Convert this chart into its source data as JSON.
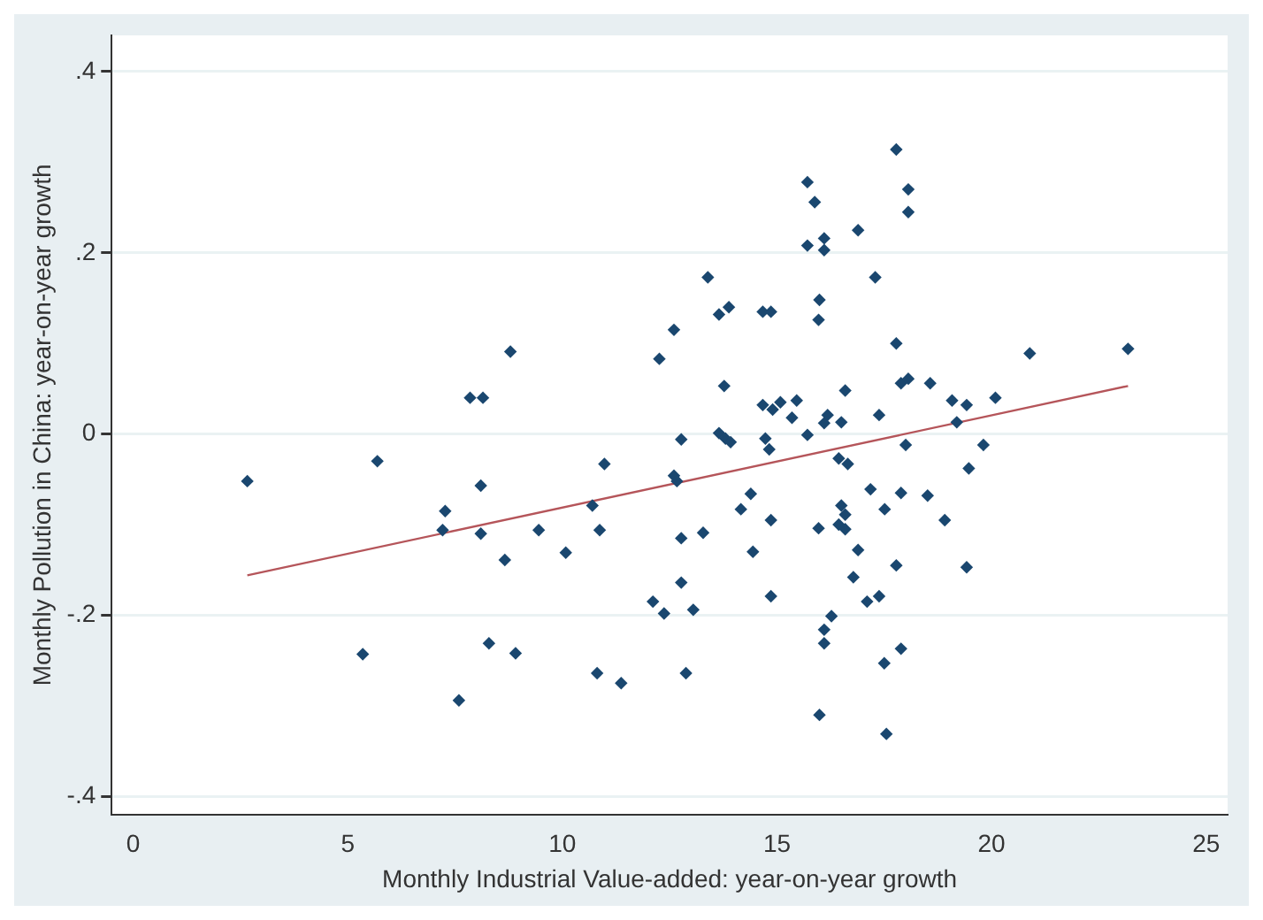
{
  "chart_data": {
    "type": "scatter",
    "xlabel": "Monthly Industrial Value-added: year-on-year growth",
    "ylabel": "Monthly Pollution in China: year-on-year growth",
    "xlim": [
      -0.5,
      25.5
    ],
    "ylim": [
      -0.42,
      0.44
    ],
    "xticks": [
      0,
      5,
      10,
      15,
      20,
      25
    ],
    "yticks": [
      {
        "value": -0.4,
        "label": "-.4"
      },
      {
        "value": -0.2,
        "label": "-.2"
      },
      0,
      {
        "value": 0.2,
        "label": ".2"
      },
      {
        "value": 0.4,
        "label": ".4"
      }
    ],
    "grid": "y",
    "legend": false,
    "series": [
      {
        "type": "scatter",
        "marker": "diamond",
        "color": "#1a476f",
        "x": [
          2.66,
          5.69,
          5.35,
          7.27,
          7.21,
          7.59,
          7.85,
          8.15,
          8.1,
          8.1,
          8.29,
          8.66,
          8.79,
          8.91,
          9.45,
          10.08,
          10.7,
          10.87,
          10.81,
          10.98,
          11.37,
          12.11,
          12.26,
          12.37,
          12.6,
          12.6,
          12.67,
          12.77,
          12.77,
          12.77,
          12.88,
          13.05,
          13.28,
          13.39,
          13.65,
          13.88,
          13.77,
          13.65,
          13.8,
          13.92,
          14.16,
          14.39,
          14.44,
          14.67,
          14.86,
          14.67,
          14.73,
          14.82,
          14.9,
          15.08,
          14.86,
          14.86,
          15.35,
          15.46,
          15.71,
          15.88,
          15.71,
          16.1,
          16.1,
          15.99,
          15.97,
          15.71,
          16.1,
          16.18,
          15.97,
          16.1,
          16.1,
          16.27,
          15.99,
          16.5,
          16.59,
          16.44,
          16.65,
          16.5,
          16.59,
          16.44,
          16.59,
          16.78,
          16.89,
          16.89,
          17.1,
          17.18,
          17.29,
          17.38,
          17.38,
          17.51,
          17.5,
          17.55,
          17.78,
          17.78,
          17.89,
          18.06,
          18.0,
          17.78,
          17.89,
          17.89,
          18.06,
          18.06,
          18.57,
          18.51,
          18.91,
          19.08,
          19.19,
          19.42,
          19.47,
          19.42,
          19.81,
          20.09,
          20.89,
          23.18
        ],
        "values": [
          -0.052,
          -0.03,
          -0.243,
          -0.085,
          -0.106,
          -0.294,
          0.04,
          0.04,
          -0.057,
          -0.11,
          -0.231,
          -0.139,
          0.091,
          -0.242,
          -0.106,
          -0.131,
          -0.079,
          -0.106,
          -0.264,
          -0.033,
          -0.275,
          -0.185,
          0.083,
          -0.198,
          0.115,
          -0.046,
          -0.052,
          -0.006,
          -0.115,
          -0.164,
          -0.264,
          -0.194,
          -0.109,
          0.173,
          0.132,
          0.14,
          0.053,
          0.001,
          -0.005,
          -0.009,
          -0.083,
          -0.066,
          -0.13,
          0.135,
          0.135,
          0.032,
          -0.005,
          -0.017,
          0.027,
          0.035,
          -0.095,
          -0.179,
          0.018,
          0.037,
          0.278,
          0.256,
          0.208,
          0.216,
          0.203,
          0.148,
          0.126,
          -0.001,
          0.012,
          0.021,
          -0.104,
          -0.216,
          -0.231,
          -0.201,
          -0.31,
          0.013,
          0.048,
          -0.027,
          -0.033,
          -0.079,
          -0.089,
          -0.1,
          -0.105,
          -0.158,
          -0.128,
          0.225,
          -0.185,
          -0.061,
          0.173,
          0.021,
          -0.179,
          -0.083,
          -0.253,
          -0.331,
          0.314,
          0.1,
          0.056,
          0.061,
          -0.012,
          -0.145,
          -0.065,
          -0.237,
          0.27,
          0.245,
          0.056,
          -0.068,
          -0.095,
          0.037,
          0.013,
          0.032,
          -0.038,
          -0.147,
          -0.012,
          0.04,
          0.089,
          0.094
        ]
      },
      {
        "type": "line",
        "marker": "none",
        "color": "#b5555a",
        "x": [
          2.66,
          23.18
        ],
        "values": [
          -0.156,
          0.053
        ]
      }
    ]
  }
}
